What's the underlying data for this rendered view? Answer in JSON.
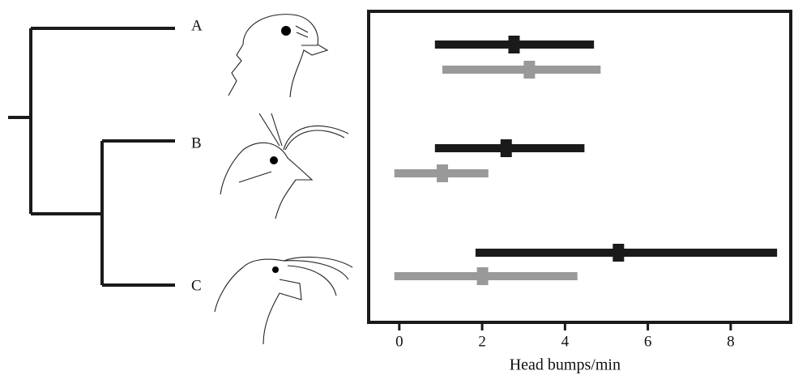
{
  "chart_data": {
    "type": "interval",
    "categories": [
      "A",
      "B",
      "C"
    ],
    "series": [
      {
        "color": "#1a1a1a",
        "values": [
          2.77,
          2.58,
          5.29
        ],
        "low": [
          0.86,
          0.86,
          1.84
        ],
        "high": [
          4.7,
          4.47,
          9.12
        ]
      },
      {
        "color": "#999999",
        "values": [
          3.14,
          1.04,
          2.01
        ],
        "low": [
          1.04,
          -0.12,
          -0.12
        ],
        "high": [
          4.86,
          2.15,
          4.3
        ]
      }
    ],
    "xlim": [
      -0.74,
      9.45
    ],
    "xticks": [
      0,
      2,
      4,
      6,
      8
    ],
    "xlabel": "Head bumps/min"
  }
}
